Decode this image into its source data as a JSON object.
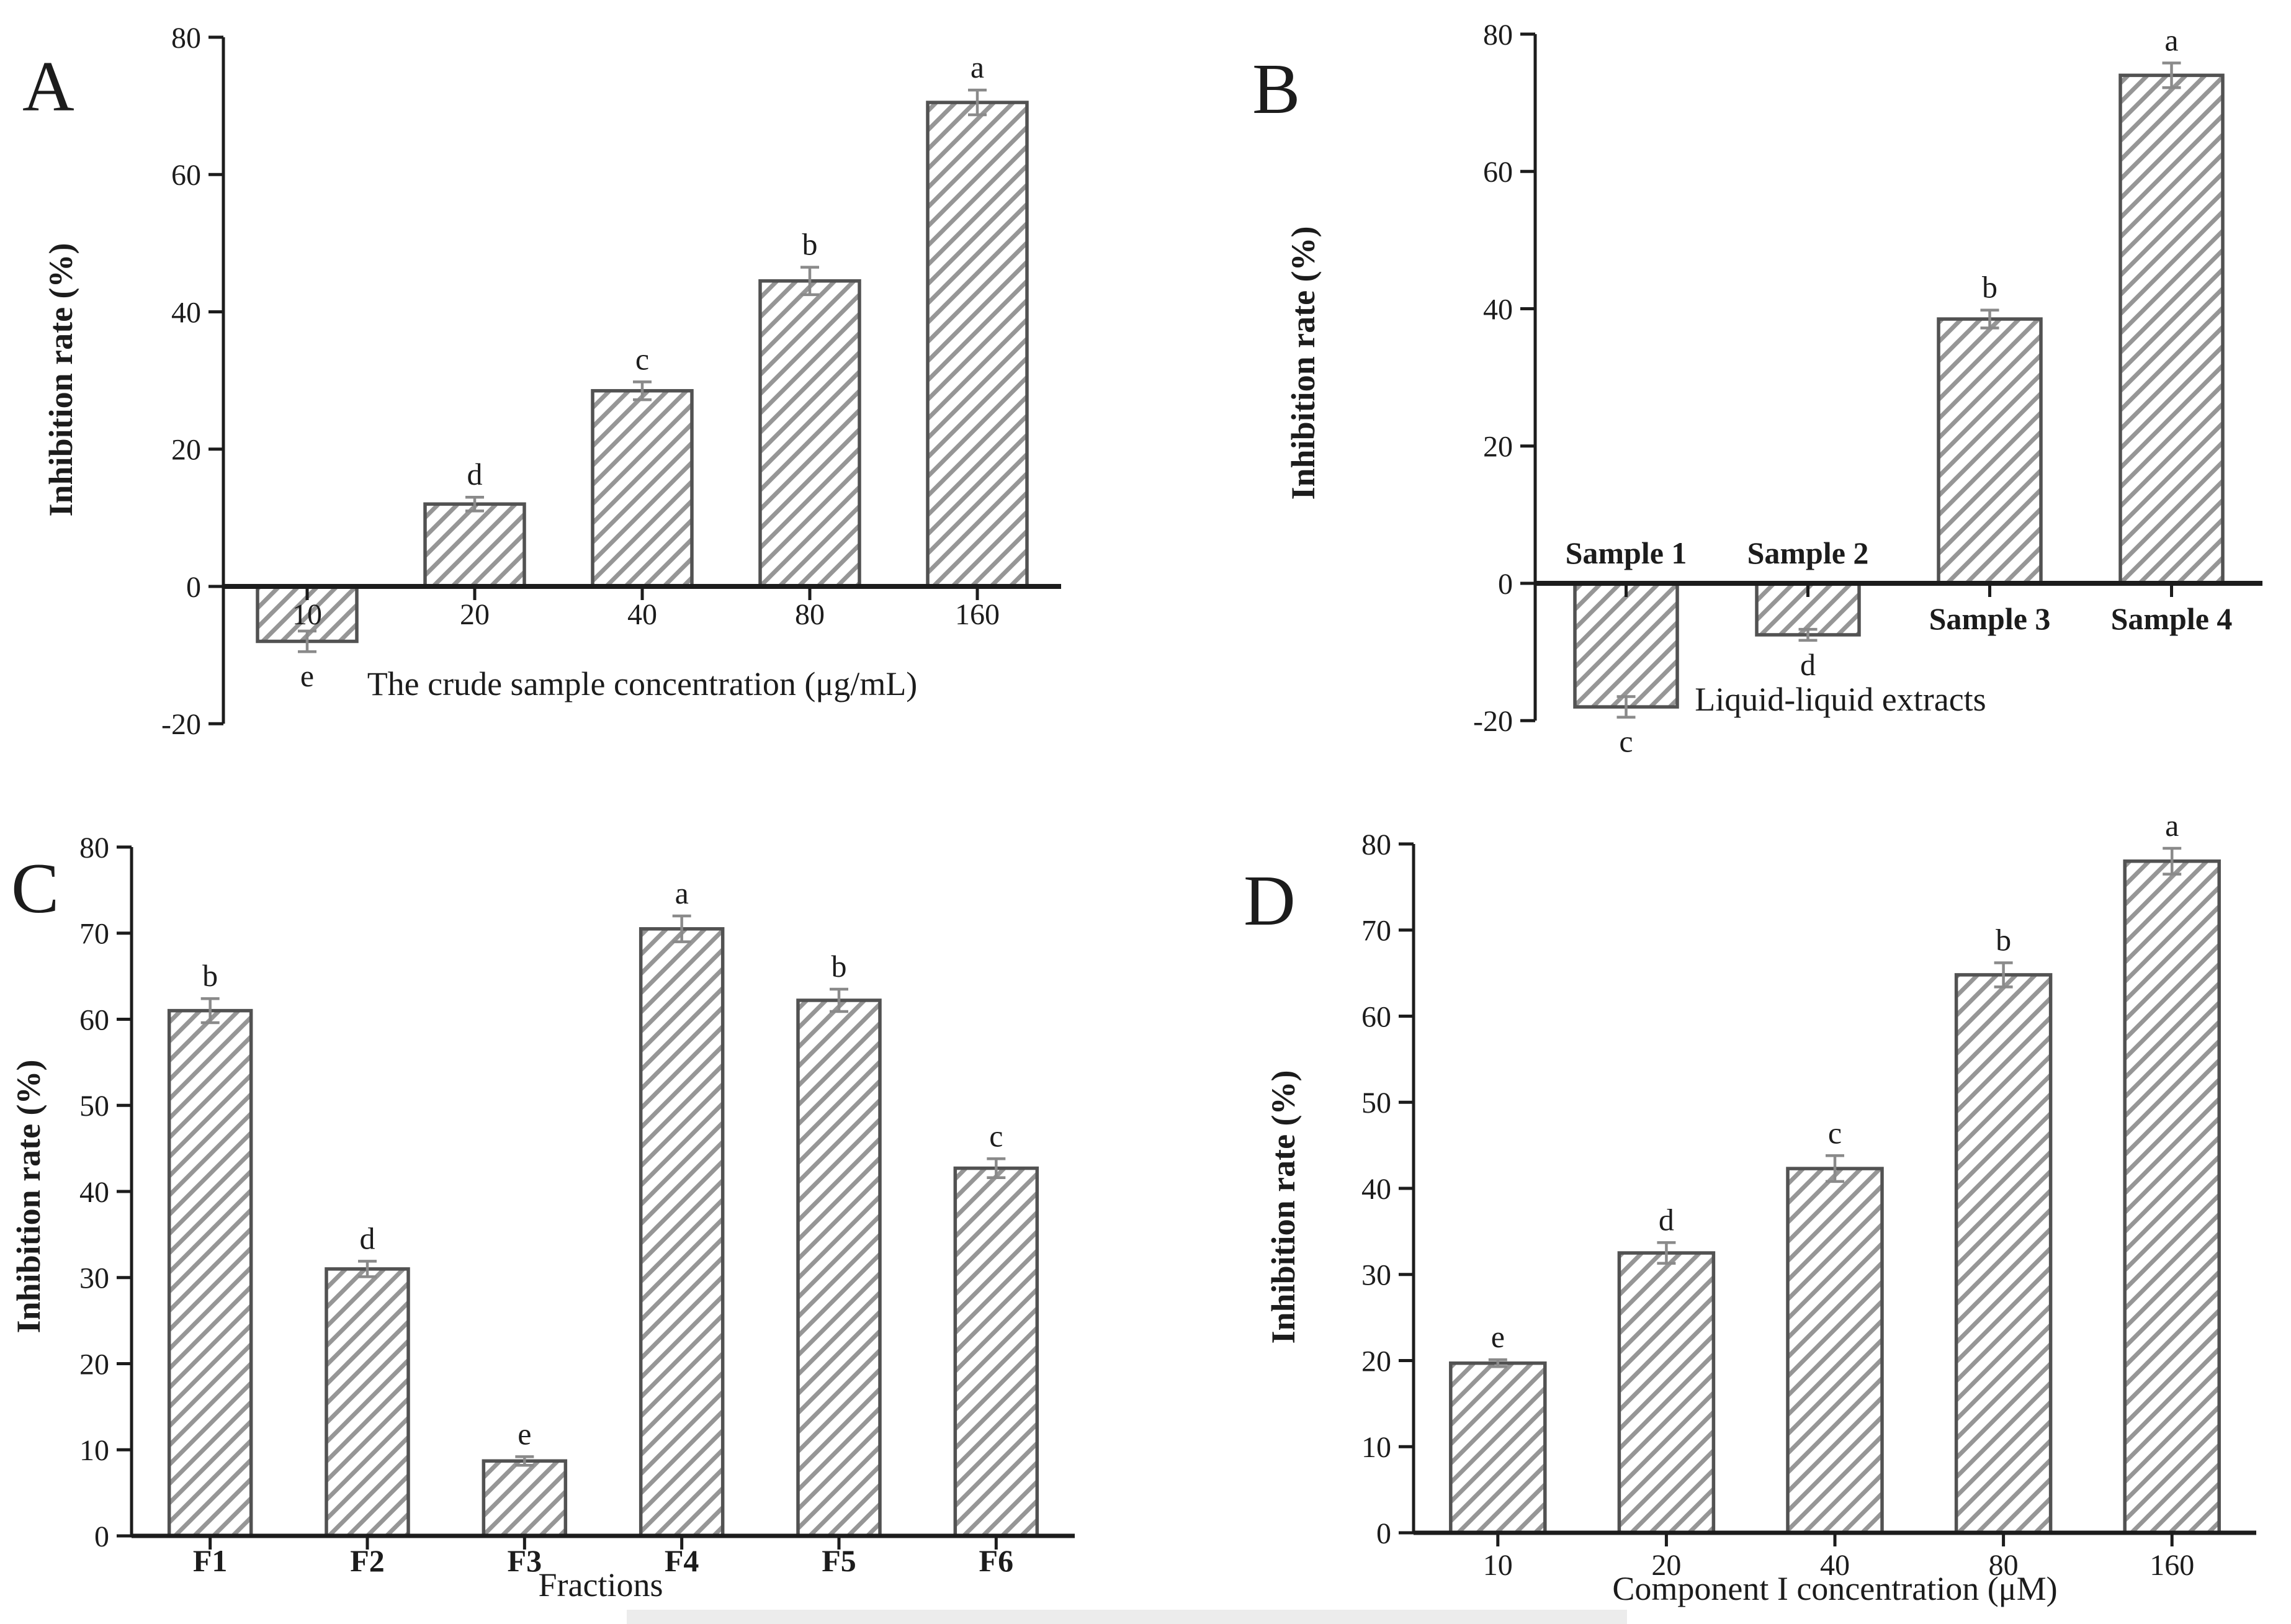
{
  "figure": {
    "background": "#ffffff",
    "panel_count": 4,
    "artifact_strip_color": "#ececec"
  },
  "style": {
    "text_color": "#1c1c1c",
    "axis_color": "#1c1c1c",
    "bar_stroke_color": "#525252",
    "bar_fill_color": "#ffffff",
    "hatch_color": "#969696",
    "error_bar_color": "#8a8a8a"
  },
  "chart_data": [
    {
      "id": "A",
      "type": "bar",
      "panel_letter": "A",
      "ylabel": "Inhibition rate (%)",
      "xlabel": "The crude sample concentration (μg/mL)",
      "ylim": [
        -20,
        80
      ],
      "yticks": [
        -20,
        0,
        20,
        40,
        60,
        80
      ],
      "grid": false,
      "legend": false,
      "categories": [
        "10",
        "20",
        "40",
        "80",
        "160"
      ],
      "values": [
        -8,
        12,
        28.5,
        44.5,
        70.5
      ],
      "errors": [
        1.5,
        1.0,
        1.3,
        2.0,
        1.8
      ],
      "sig_letters": [
        "e",
        "d",
        "c",
        "b",
        "a"
      ],
      "category_bold": false,
      "category_sides": [
        "below",
        "below",
        "below",
        "below",
        "below"
      ]
    },
    {
      "id": "B",
      "type": "bar",
      "panel_letter": "B",
      "ylabel": "Inhibition rate (%)",
      "xlabel": "Liquid-liquid extracts",
      "ylim": [
        -20,
        80
      ],
      "yticks": [
        -20,
        0,
        20,
        40,
        60,
        80
      ],
      "grid": false,
      "legend": false,
      "categories": [
        "Sample 1",
        "Sample 2",
        "Sample 3",
        "Sample 4"
      ],
      "values": [
        -18,
        -7.5,
        38.5,
        74
      ],
      "errors": [
        1.5,
        0.8,
        1.3,
        1.8
      ],
      "sig_letters": [
        "c",
        "d",
        "b",
        "a"
      ],
      "category_bold": true,
      "category_sides": [
        "above",
        "above",
        "below",
        "below"
      ]
    },
    {
      "id": "C",
      "type": "bar",
      "panel_letter": "C",
      "ylabel": "Inhibition rate (%)",
      "xlabel": "Fractions",
      "ylim": [
        0,
        80
      ],
      "yticks": [
        0,
        10,
        20,
        30,
        40,
        50,
        60,
        70,
        80
      ],
      "grid": false,
      "legend": false,
      "categories": [
        "F1",
        "F2",
        "F3",
        "F4",
        "F5",
        "F6"
      ],
      "values": [
        61,
        31,
        8.7,
        70.5,
        62.2,
        42.7
      ],
      "errors": [
        1.4,
        0.9,
        0.5,
        1.5,
        1.3,
        1.1
      ],
      "sig_letters": [
        "b",
        "d",
        "e",
        "a",
        "b",
        "c"
      ],
      "category_bold": true,
      "category_sides": [
        "below",
        "below",
        "below",
        "below",
        "below",
        "below"
      ]
    },
    {
      "id": "D",
      "type": "bar",
      "panel_letter": "D",
      "ylabel": "Inhibition rate (%)",
      "xlabel": "Component I concentration (μM)",
      "ylim": [
        0,
        80
      ],
      "yticks": [
        0,
        10,
        20,
        30,
        40,
        50,
        60,
        70,
        80
      ],
      "grid": false,
      "legend": false,
      "categories": [
        "10",
        "20",
        "40",
        "80",
        "160"
      ],
      "values": [
        19.7,
        32.5,
        42.3,
        64.8,
        78
      ],
      "errors": [
        0.4,
        1.2,
        1.5,
        1.4,
        1.5
      ],
      "sig_letters": [
        "e",
        "d",
        "c",
        "b",
        "a"
      ],
      "category_bold": false,
      "category_sides": [
        "below",
        "below",
        "below",
        "below",
        "below"
      ]
    }
  ]
}
